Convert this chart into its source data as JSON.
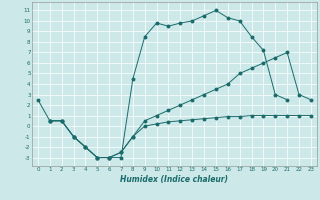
{
  "xlabel": "Humidex (Indice chaleur)",
  "bg_color": "#cce8e8",
  "line_color": "#1a6b6b",
  "grid_color": "#ffffff",
  "xlim": [
    -0.5,
    23.5
  ],
  "ylim": [
    -3.8,
    11.8
  ],
  "xticks": [
    0,
    1,
    2,
    3,
    4,
    5,
    6,
    7,
    8,
    9,
    10,
    11,
    12,
    13,
    14,
    15,
    16,
    17,
    18,
    19,
    20,
    21,
    22,
    23
  ],
  "yticks": [
    -3,
    -2,
    -1,
    0,
    1,
    2,
    3,
    4,
    5,
    6,
    7,
    8,
    9,
    10,
    11
  ],
  "s1x": [
    0,
    1,
    2,
    3,
    4,
    5,
    6,
    7,
    8,
    9,
    10,
    11,
    12,
    13,
    14,
    15,
    16,
    17,
    18,
    19,
    20,
    21
  ],
  "s1y": [
    2.5,
    0.5,
    0.5,
    -1.0,
    -2.0,
    -3.0,
    -3.0,
    -3.0,
    4.5,
    8.5,
    9.8,
    9.5,
    9.8,
    10.0,
    10.5,
    11.0,
    10.3,
    10.0,
    8.5,
    7.2,
    3.0,
    2.5
  ],
  "s2x": [
    1,
    2,
    3,
    4,
    5,
    6,
    7,
    8,
    9,
    10,
    11,
    12,
    13,
    14,
    15,
    16,
    17,
    18,
    19,
    20,
    21,
    22,
    23
  ],
  "s2y": [
    0.5,
    0.5,
    -1.0,
    -2.0,
    -3.0,
    -3.0,
    -2.5,
    -1.0,
    0.5,
    1.0,
    1.5,
    2.0,
    2.5,
    3.0,
    3.5,
    4.0,
    5.0,
    5.5,
    6.0,
    6.5,
    7.0,
    3.0,
    2.5
  ],
  "s3x": [
    1,
    2,
    3,
    4,
    5,
    6,
    7,
    8,
    9,
    10,
    11,
    12,
    13,
    14,
    15,
    16,
    17,
    18,
    19,
    20,
    21,
    22,
    23
  ],
  "s3y": [
    0.5,
    0.5,
    -1.0,
    -2.0,
    -3.0,
    -3.0,
    -2.5,
    -1.0,
    0.0,
    0.2,
    0.4,
    0.5,
    0.6,
    0.7,
    0.8,
    0.9,
    0.9,
    1.0,
    1.0,
    1.0,
    1.0,
    1.0,
    1.0
  ]
}
